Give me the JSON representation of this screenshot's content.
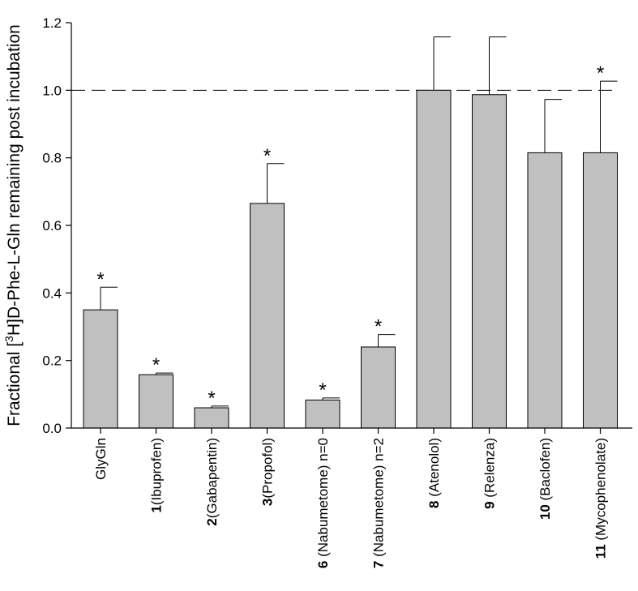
{
  "chart_data": {
    "type": "bar",
    "ylabel_parts": [
      "Fractional [",
      "3",
      "H]D-Phe-L-Gln remaining post incubation"
    ],
    "ylim": [
      0,
      1.2
    ],
    "yticks": [
      "0.0",
      "0.2",
      "0.4",
      "0.6",
      "0.8",
      "1.0",
      "1.2"
    ],
    "reference_line": 1.0,
    "bar_color": "#c0c0c0",
    "categories": [
      {
        "num": "",
        "name": "GlyGln"
      },
      {
        "num": "1",
        "name": "(Ibuprofen)"
      },
      {
        "num": "2",
        "name": "(Gabapentin)"
      },
      {
        "num": "3",
        "name": "(Propofol)"
      },
      {
        "num": "6",
        "name": " (Nabumetome) n=0"
      },
      {
        "num": "7",
        "name": " (Nabumetome) n=2"
      },
      {
        "num": "8",
        "name": "  (Atenolol)"
      },
      {
        "num": "9",
        "name": " (Relenza)"
      },
      {
        "num": "10",
        "name": " (Baclofen)"
      },
      {
        "num": "11",
        "name": " (Mycophenolate)"
      }
    ],
    "values": [
      0.35,
      0.158,
      0.06,
      0.665,
      0.083,
      0.24,
      1.0,
      0.987,
      0.815,
      0.815
    ],
    "errors": [
      0.067,
      0.005,
      0.005,
      0.118,
      0.006,
      0.037,
      0.158,
      0.171,
      0.158,
      0.212
    ],
    "significant": [
      true,
      true,
      true,
      true,
      true,
      true,
      false,
      false,
      false,
      true
    ],
    "significance_marker": "*"
  }
}
